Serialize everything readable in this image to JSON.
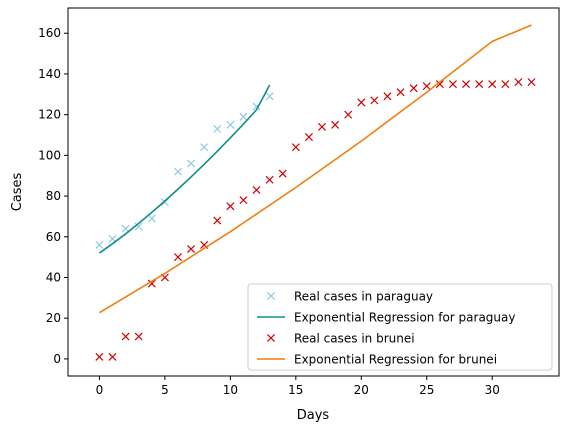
{
  "chart_data": {
    "type": "line",
    "xlabel": "Days",
    "ylabel": "Cases",
    "xlim": [
      -2.4,
      35.1
    ],
    "ylim": [
      -8.4,
      172.4
    ],
    "xticks": [
      0,
      5,
      10,
      15,
      20,
      25,
      30
    ],
    "yticks": [
      0,
      20,
      40,
      60,
      80,
      100,
      120,
      140,
      160
    ],
    "grid": false,
    "legend_position": "bottom-right",
    "series": [
      {
        "name": "Real cases in paraguay",
        "kind": "scatter",
        "marker": "x",
        "color": "#8ecae6",
        "x": [
          0,
          1,
          2,
          3,
          4,
          5,
          6,
          7,
          8,
          9,
          10,
          11,
          12,
          13
        ],
        "y": [
          56,
          59,
          64,
          65,
          69,
          77,
          92,
          96,
          104,
          113,
          115,
          119,
          124,
          129
        ]
      },
      {
        "name": "Exponential Regression for paraguay",
        "kind": "line",
        "color": "#0f8f8a",
        "x": [
          0,
          1,
          2,
          3,
          4,
          5,
          6,
          7,
          8,
          9,
          10,
          11,
          12,
          13
        ],
        "y": [
          52,
          56.6,
          61.4,
          66.6,
          72,
          77.6,
          83.4,
          89.4,
          95.6,
          102,
          108.6,
          115.4,
          122.4,
          134.6
        ]
      },
      {
        "name": "Real cases in brunei",
        "kind": "scatter",
        "marker": "x",
        "color": "#d00000",
        "x": [
          0,
          1,
          2,
          3,
          4,
          5,
          6,
          7,
          8,
          9,
          10,
          11,
          12,
          13,
          14,
          15,
          16,
          17,
          18,
          19,
          20,
          21,
          22,
          23,
          24,
          25,
          26,
          27,
          28,
          29,
          30,
          31,
          32,
          33
        ],
        "y": [
          1,
          1,
          11,
          11,
          37,
          40,
          50,
          54,
          56,
          68,
          75,
          78,
          83,
          88,
          91,
          104,
          109,
          114,
          115,
          120,
          126,
          127,
          129,
          131,
          133,
          134,
          135,
          135,
          135,
          135,
          135,
          135,
          136,
          136
        ]
      },
      {
        "name": "Exponential Regression for brunei",
        "kind": "line",
        "color": "#f07f12",
        "x": [
          0,
          5,
          10,
          15,
          20,
          25,
          30,
          33
        ],
        "y": [
          22.7,
          42,
          62.5,
          84.2,
          107,
          131,
          156,
          164
        ]
      }
    ]
  }
}
